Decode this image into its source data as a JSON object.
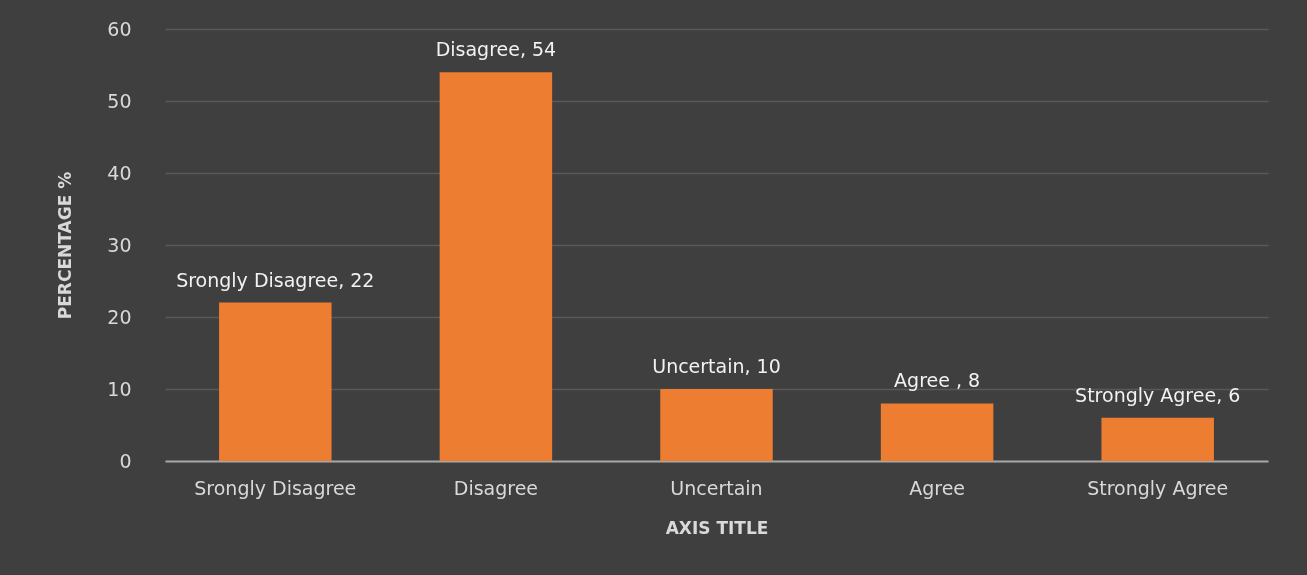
{
  "chart_data": {
    "type": "bar",
    "xlabel": "AXIS TITLE",
    "ylabel": "PERCENTAGE %",
    "categories": [
      "Srongly Disagree",
      "Disagree",
      "Uncertain",
      "Agree",
      "Strongly Agree"
    ],
    "values": [
      22,
      54,
      10,
      8,
      6
    ],
    "color": "#ed7d31",
    "value_labels": [
      "Srongly Disagree, 22",
      "Disagree, 54",
      "Uncertain, 10",
      "Agree , 8",
      "Strongly Agree, 6"
    ],
    "ylim": [
      0,
      60
    ],
    "yticks": [
      0,
      10,
      20,
      30,
      40,
      50,
      60
    ],
    "grid": "y"
  }
}
